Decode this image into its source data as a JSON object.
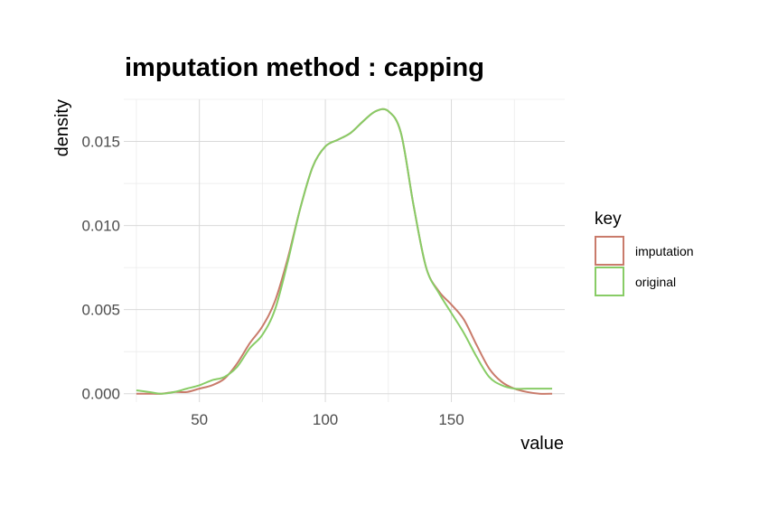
{
  "chart_data": {
    "type": "line",
    "title": "imputation method : capping",
    "xlabel": "value",
    "ylabel": "density",
    "xlim": [
      20,
      195
    ],
    "ylim": [
      -0.0005,
      0.0175
    ],
    "x_ticks": [
      50,
      100,
      150
    ],
    "x_tick_labels": [
      "50",
      "100",
      "150"
    ],
    "y_ticks": [
      0,
      0.005,
      0.01,
      0.015
    ],
    "y_tick_labels": [
      "0.000",
      "0.005",
      "0.010",
      "0.015"
    ],
    "grid": true,
    "legend": {
      "title": "key",
      "position": "right"
    },
    "series": [
      {
        "name": "imputation",
        "color": "#c97b6b",
        "x": [
          25,
          30,
          35,
          40,
          45,
          50,
          55,
          60,
          65,
          70,
          75,
          80,
          85,
          90,
          95,
          100,
          105,
          110,
          115,
          120,
          125,
          130,
          135,
          140,
          145,
          150,
          155,
          160,
          165,
          170,
          175,
          180,
          185,
          190
        ],
        "y": [
          0.0,
          0.0,
          0.0,
          0.0001,
          0.0001,
          0.0003,
          0.0005,
          0.0009,
          0.0018,
          0.003,
          0.004,
          0.0055,
          0.008,
          0.011,
          0.0135,
          0.0147,
          0.0151,
          0.0155,
          0.0162,
          0.0168,
          0.0168,
          0.0155,
          0.0112,
          0.0075,
          0.0061,
          0.0053,
          0.0044,
          0.0029,
          0.0015,
          0.0007,
          0.0003,
          0.0001,
          0.0,
          0.0
        ]
      },
      {
        "name": "original",
        "color": "#88cc66",
        "x": [
          25,
          30,
          35,
          40,
          45,
          50,
          55,
          60,
          65,
          70,
          75,
          80,
          85,
          90,
          95,
          100,
          105,
          110,
          115,
          120,
          125,
          130,
          135,
          140,
          145,
          150,
          155,
          160,
          165,
          170,
          175,
          180,
          185,
          190
        ],
        "y": [
          0.0002,
          0.0001,
          0.0,
          0.0001,
          0.0003,
          0.0005,
          0.0008,
          0.001,
          0.0016,
          0.0027,
          0.0035,
          0.005,
          0.0078,
          0.011,
          0.0135,
          0.0147,
          0.0151,
          0.0155,
          0.0162,
          0.0168,
          0.0168,
          0.0155,
          0.0112,
          0.0075,
          0.006,
          0.0048,
          0.0036,
          0.0022,
          0.001,
          0.0005,
          0.0003,
          0.0003,
          0.0003,
          0.0003
        ]
      }
    ]
  }
}
